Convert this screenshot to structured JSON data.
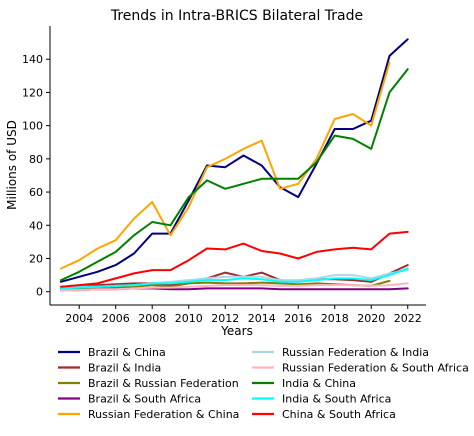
{
  "chart_data": {
    "type": "line",
    "title": "Trends in Intra-BRICS Bilateral Trade",
    "xlabel": "Years",
    "ylabel": "Millions of USD",
    "xlim": [
      2002.4,
      2023.0
    ],
    "ylim": [
      -8,
      160
    ],
    "x_ticks": [
      2004,
      2006,
      2008,
      2010,
      2012,
      2014,
      2016,
      2018,
      2020,
      2022
    ],
    "y_ticks": [
      0,
      20,
      40,
      60,
      80,
      100,
      120,
      140
    ],
    "grid": false,
    "legend_placement": "bottom, two columns",
    "x": [
      2003,
      2004,
      2005,
      2006,
      2007,
      2008,
      2009,
      2010,
      2011,
      2012,
      2013,
      2014,
      2015,
      2016,
      2017,
      2018,
      2019,
      2020,
      2021,
      2022
    ],
    "series": [
      {
        "name": "Brazil & China",
        "color": "#000080",
        "values": [
          6,
          9,
          12,
          16,
          23,
          35,
          35,
          55,
          76,
          75,
          82,
          76,
          63,
          57,
          77,
          98,
          98,
          103,
          142,
          152
        ]
      },
      {
        "name": "Brazil & India",
        "color": "#a52a2a",
        "values": [
          2,
          3,
          4,
          4.5,
          5,
          5,
          4,
          6,
          8,
          11.5,
          9,
          11.5,
          7,
          6,
          7.5,
          7.5,
          7,
          6,
          11,
          16
        ]
      },
      {
        "name": "Brazil & Russian Federation",
        "color": "#808000",
        "values": [
          1,
          1.5,
          2,
          2.5,
          3,
          4,
          3,
          5,
          5.5,
          5,
          5,
          5.5,
          5,
          4.5,
          5,
          4.5,
          4,
          3.5,
          6.5,
          null
        ]
      },
      {
        "name": "Brazil & South Africa",
        "color": "#800080",
        "values": [
          1,
          1,
          1.5,
          1.5,
          2,
          2,
          1.5,
          1.5,
          2,
          2,
          2,
          2,
          1.5,
          1.5,
          1.5,
          1.5,
          1.5,
          1.5,
          1.5,
          2
        ]
      },
      {
        "name": "Russian Federation & China",
        "color": "#ffa500",
        "values": [
          14,
          19,
          26,
          31,
          44,
          54,
          34,
          51,
          75,
          80,
          86,
          91,
          62,
          65,
          80,
          104,
          107,
          100,
          138,
          null
        ]
      },
      {
        "name": "Russian Federation & India",
        "color": "#add8e6",
        "values": [
          2,
          3,
          3,
          3.5,
          4,
          5,
          6,
          7,
          8,
          9,
          9,
          9,
          7,
          7,
          8,
          10,
          10,
          8,
          11,
          13
        ]
      },
      {
        "name": "Russian Federation & South Africa",
        "color": "#ffb6c1",
        "values": [
          1,
          1,
          1.5,
          1.5,
          2,
          2.5,
          2.5,
          3,
          3.5,
          4,
          4,
          4,
          3.5,
          3.5,
          4,
          4,
          4,
          3.5,
          4,
          5
        ]
      },
      {
        "name": "India & China",
        "color": "#008000",
        "values": [
          7,
          12,
          18,
          24,
          34,
          42,
          40,
          57,
          67,
          62,
          65,
          68,
          68,
          68,
          78,
          94,
          92,
          86,
          120,
          134
        ]
      },
      {
        "name": "India & South Africa",
        "color": "#00ffff",
        "values": [
          2,
          2.5,
          3,
          3.5,
          4,
          5,
          5,
          6,
          7,
          7,
          8,
          7.5,
          6,
          6,
          7,
          8,
          8,
          7,
          10,
          14
        ]
      },
      {
        "name": "China & South Africa",
        "color": "#ff0000",
        "values": [
          3,
          4,
          5,
          8,
          11,
          13,
          13,
          19,
          26,
          25.5,
          29,
          24.5,
          23,
          20,
          24,
          25.5,
          26.5,
          25.5,
          35,
          36
        ]
      }
    ]
  }
}
